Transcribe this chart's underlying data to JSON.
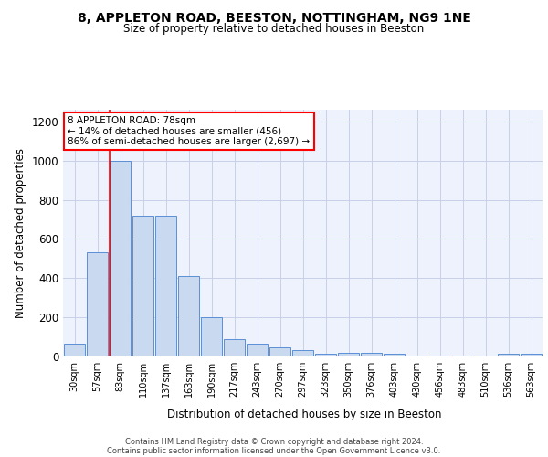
{
  "title": "8, APPLETON ROAD, BEESTON, NOTTINGHAM, NG9 1NE",
  "subtitle": "Size of property relative to detached houses in Beeston",
  "xlabel": "Distribution of detached houses by size in Beeston",
  "ylabel": "Number of detached properties",
  "categories": [
    "30sqm",
    "57sqm",
    "83sqm",
    "110sqm",
    "137sqm",
    "163sqm",
    "190sqm",
    "217sqm",
    "243sqm",
    "270sqm",
    "297sqm",
    "323sqm",
    "350sqm",
    "376sqm",
    "403sqm",
    "430sqm",
    "456sqm",
    "483sqm",
    "510sqm",
    "536sqm",
    "563sqm"
  ],
  "values": [
    65,
    530,
    1000,
    720,
    720,
    410,
    200,
    90,
    65,
    45,
    35,
    15,
    20,
    18,
    15,
    5,
    5,
    5,
    2,
    15,
    15
  ],
  "bar_color": "#c9d9f0",
  "bar_edge_color": "#5b8fd4",
  "red_line_index": 2,
  "annotation_title": "8 APPLETON ROAD: 78sqm",
  "annotation_line1": "← 14% of detached houses are smaller (456)",
  "annotation_line2": "86% of semi-detached houses are larger (2,697) →",
  "ylim": [
    0,
    1260
  ],
  "yticks": [
    0,
    200,
    400,
    600,
    800,
    1000,
    1200
  ],
  "footer1": "Contains HM Land Registry data © Crown copyright and database right 2024.",
  "footer2": "Contains public sector information licensed under the Open Government Licence v3.0.",
  "bg_color": "#eef2fc",
  "grid_color": "#c8d0e8"
}
